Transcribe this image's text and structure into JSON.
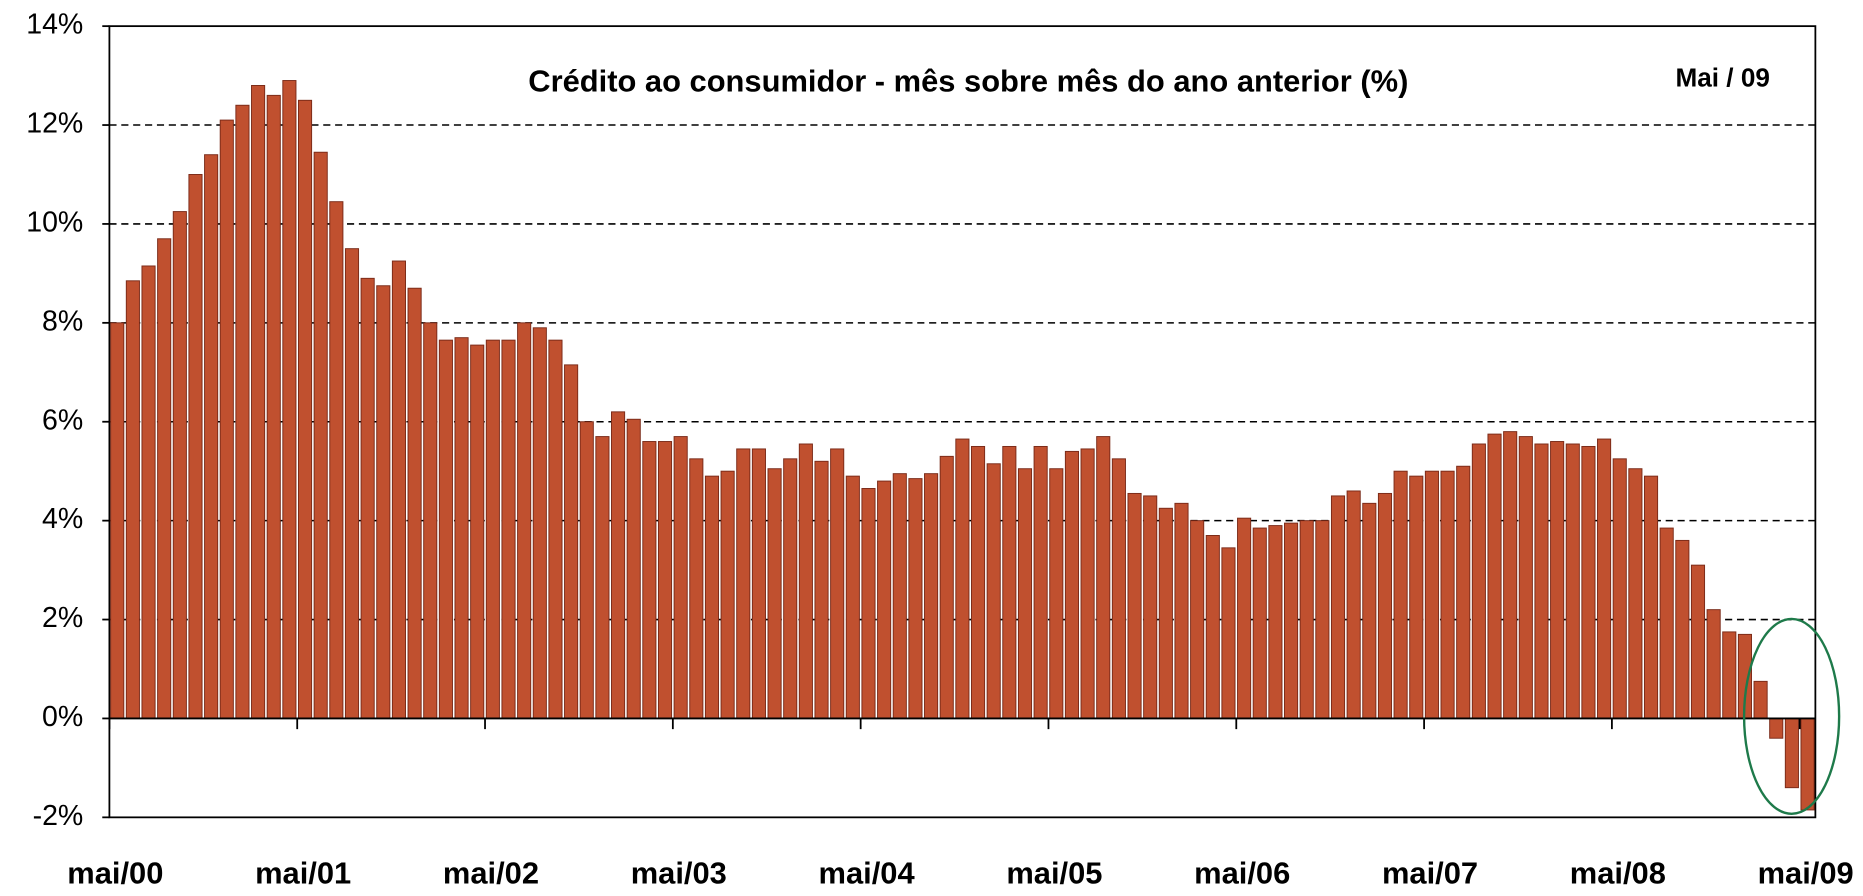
{
  "chart_data": {
    "type": "bar",
    "title": "Crédito ao consumidor -  mês sobre mês do ano anterior (%)",
    "annotation": "Mai / 09",
    "categories": [
      "mai/00",
      null,
      null,
      null,
      null,
      null,
      null,
      null,
      null,
      null,
      null,
      null,
      "mai/01",
      null,
      null,
      null,
      null,
      null,
      null,
      null,
      null,
      null,
      null,
      null,
      "mai/02",
      null,
      null,
      null,
      null,
      null,
      null,
      null,
      null,
      null,
      null,
      null,
      "mai/03",
      null,
      null,
      null,
      null,
      null,
      null,
      null,
      null,
      null,
      null,
      null,
      "mai/04",
      null,
      null,
      null,
      null,
      null,
      null,
      null,
      null,
      null,
      null,
      null,
      "mai/05",
      null,
      null,
      null,
      null,
      null,
      null,
      null,
      null,
      null,
      null,
      null,
      "mai/06",
      null,
      null,
      null,
      null,
      null,
      null,
      null,
      null,
      null,
      null,
      null,
      "mai/07",
      null,
      null,
      null,
      null,
      null,
      null,
      null,
      null,
      null,
      null,
      null,
      "mai/08",
      null,
      null,
      null,
      null,
      null,
      null,
      null,
      null,
      null,
      null,
      null,
      "mai/09"
    ],
    "values": [
      8.0,
      8.85,
      9.15,
      9.7,
      10.25,
      11.0,
      11.4,
      12.1,
      12.4,
      12.8,
      12.6,
      12.9,
      12.5,
      11.45,
      10.45,
      9.5,
      8.9,
      8.75,
      9.25,
      8.7,
      8.0,
      7.65,
      7.7,
      7.55,
      7.65,
      7.65,
      8.0,
      7.9,
      7.65,
      7.15,
      6.0,
      5.7,
      6.2,
      6.05,
      5.6,
      5.6,
      5.7,
      5.25,
      4.9,
      5.0,
      5.45,
      5.45,
      5.05,
      5.25,
      5.55,
      5.2,
      5.45,
      4.9,
      4.65,
      4.8,
      4.95,
      4.85,
      4.95,
      5.3,
      5.65,
      5.5,
      5.15,
      5.5,
      5.05,
      5.5,
      5.05,
      5.4,
      5.45,
      5.7,
      5.25,
      4.55,
      4.5,
      4.25,
      4.35,
      4.0,
      3.7,
      3.45,
      4.05,
      3.85,
      3.9,
      3.95,
      4.0,
      4.0,
      4.5,
      4.6,
      4.35,
      4.55,
      5.0,
      4.9,
      5.0,
      5.0,
      5.1,
      5.55,
      5.75,
      5.8,
      5.7,
      5.55,
      5.6,
      5.55,
      5.5,
      5.65,
      5.25,
      5.05,
      4.9,
      3.85,
      3.6,
      3.1,
      2.2,
      1.75,
      1.7,
      0.75,
      -0.4,
      -1.4,
      -1.85
    ],
    "color": "#c0502f",
    "ylim": [
      -2,
      14
    ],
    "yticks": [
      {
        "value": -2,
        "label": "-2%"
      },
      {
        "value": 0,
        "label": "0%"
      },
      {
        "value": 2,
        "label": "2%"
      },
      {
        "value": 4,
        "label": "4%"
      },
      {
        "value": 6,
        "label": "6%"
      },
      {
        "value": 8,
        "label": "8%"
      },
      {
        "value": 10,
        "label": "10%"
      },
      {
        "value": 12,
        "label": "12%"
      },
      {
        "value": 14,
        "label": "14%"
      }
    ],
    "grid": true
  }
}
